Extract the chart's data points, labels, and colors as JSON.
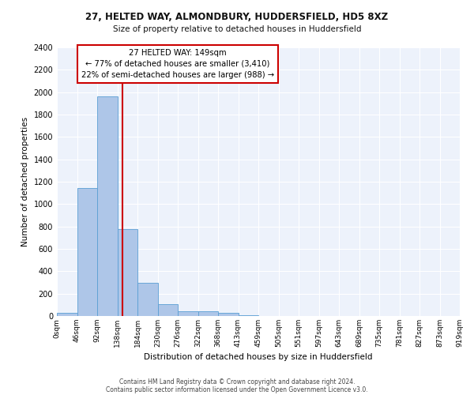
{
  "title1": "27, HELTED WAY, ALMONDBURY, HUDDERSFIELD, HD5 8XZ",
  "title2": "Size of property relative to detached houses in Huddersfield",
  "xlabel": "Distribution of detached houses by size in Huddersfield",
  "ylabel": "Number of detached properties",
  "footnote1": "Contains HM Land Registry data © Crown copyright and database right 2024.",
  "footnote2": "Contains public sector information licensed under the Open Government Licence v3.0.",
  "bin_labels": [
    "0sqm",
    "46sqm",
    "92sqm",
    "138sqm",
    "184sqm",
    "230sqm",
    "276sqm",
    "322sqm",
    "368sqm",
    "413sqm",
    "459sqm",
    "505sqm",
    "551sqm",
    "597sqm",
    "643sqm",
    "689sqm",
    "735sqm",
    "781sqm",
    "827sqm",
    "873sqm",
    "919sqm"
  ],
  "bar_values": [
    25,
    1140,
    1960,
    780,
    300,
    105,
    40,
    40,
    25,
    10,
    0,
    0,
    0,
    0,
    0,
    0,
    0,
    0,
    0,
    0
  ],
  "bar_color": "#aec6e8",
  "bar_edge_color": "#5a9fd4",
  "vline_x": 149,
  "annotation_title": "27 HELTED WAY: 149sqm",
  "annotation_line1": "← 77% of detached houses are smaller (3,410)",
  "annotation_line2": "22% of semi-detached houses are larger (988) →",
  "ylim": [
    0,
    2400
  ],
  "yticks": [
    0,
    200,
    400,
    600,
    800,
    1000,
    1200,
    1400,
    1600,
    1800,
    2000,
    2200,
    2400
  ],
  "background_color": "#edf2fb",
  "grid_color": "#ffffff",
  "vline_color": "#cc0000",
  "annotation_box_color": "#ffffff",
  "annotation_box_edge": "#cc0000"
}
